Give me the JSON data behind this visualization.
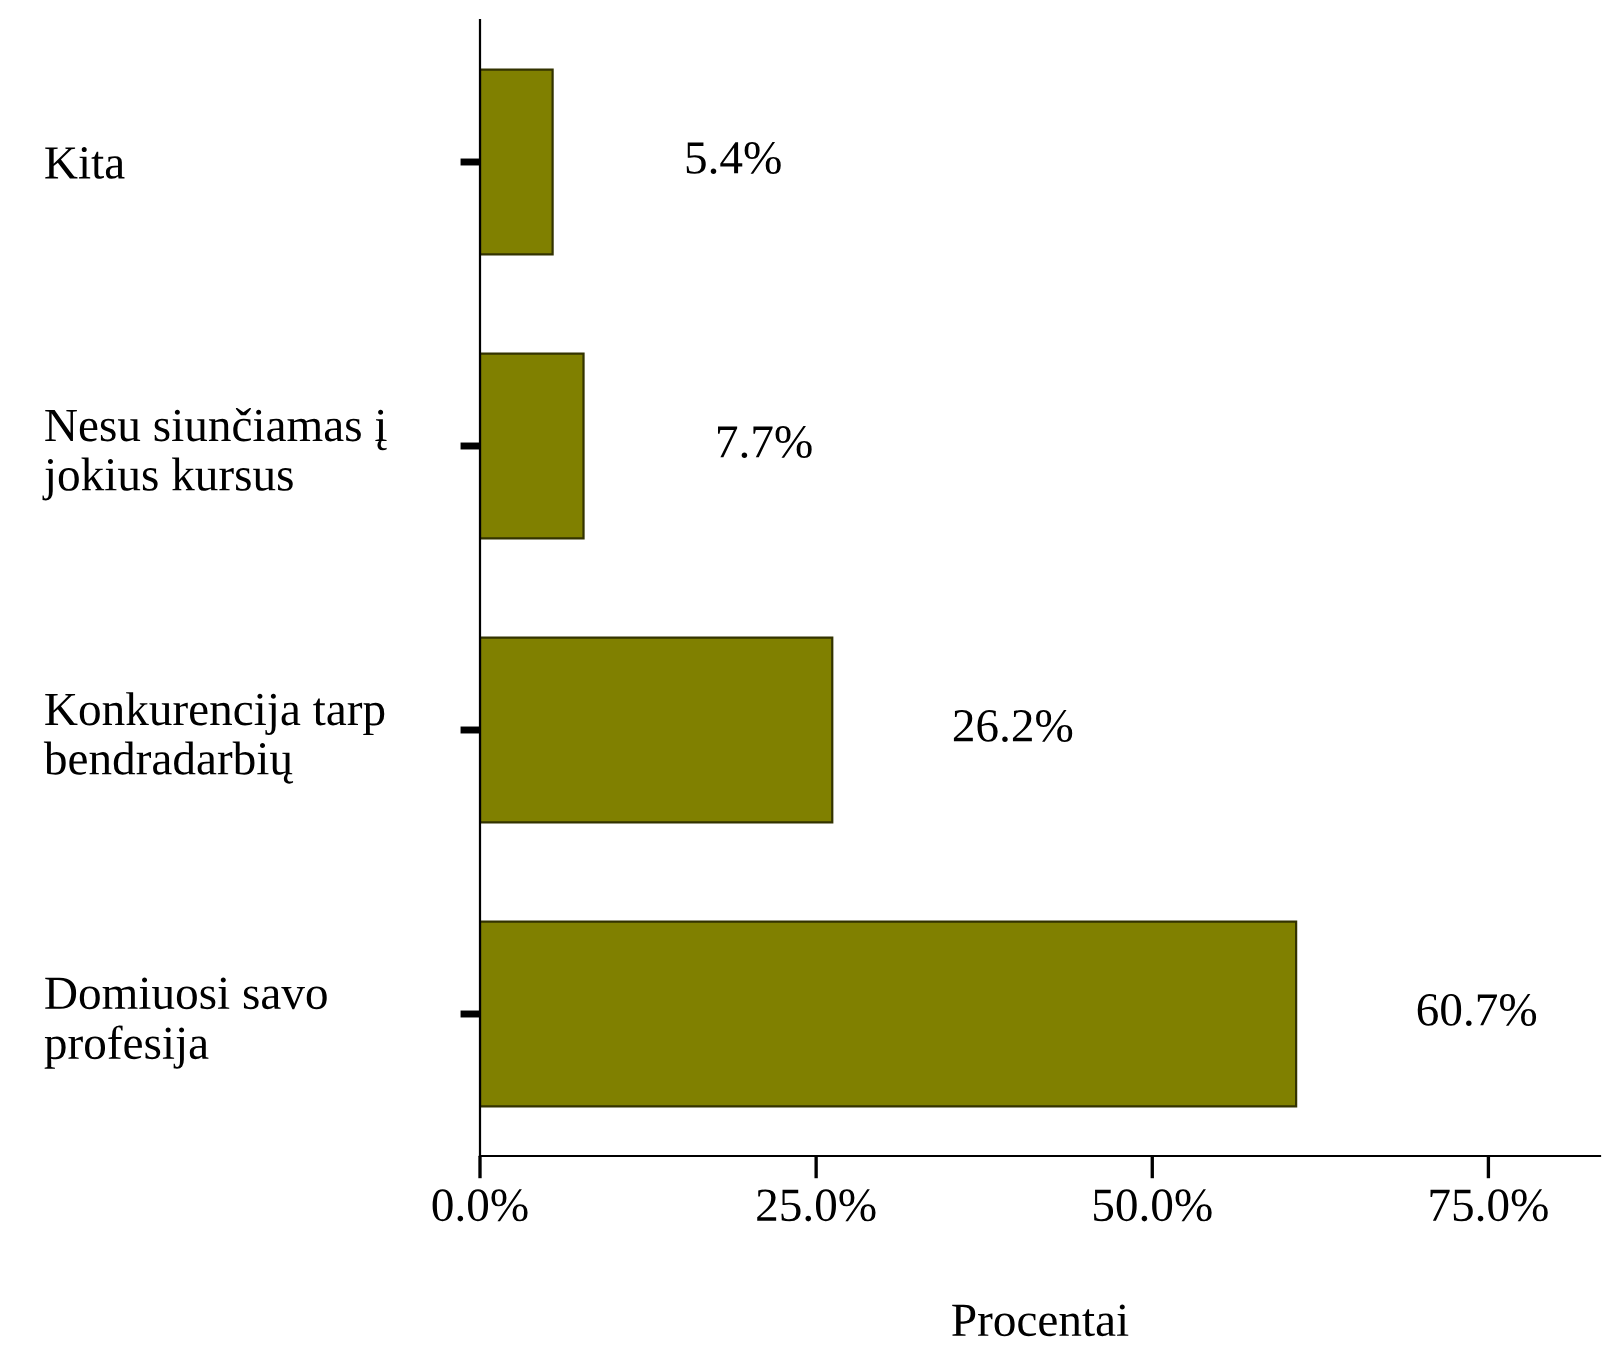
{
  "chart_data": {
    "type": "bar",
    "orientation": "horizontal",
    "categories": [
      "Kita",
      "Nesu siunčiamas į\njokius kursus",
      "Konkurencija tarp\nbendradarbių",
      "Domiuosi savo\nprofesija"
    ],
    "values": [
      5.4,
      7.7,
      26.2,
      60.7
    ],
    "color": "#808000",
    "value_labels": [
      "5.4%",
      "7.7%",
      "26.2%",
      "60.7%"
    ],
    "xlabel": "Procentai",
    "xlim": [
      0,
      83.3
    ],
    "xticks": [
      {
        "value": 0,
        "label": "0.0%"
      },
      {
        "value": 25,
        "label": "25.0%"
      },
      {
        "value": 50,
        "label": "50.0%"
      },
      {
        "value": 75,
        "label": "75.0%"
      }
    ],
    "grid": false,
    "legend": false
  }
}
